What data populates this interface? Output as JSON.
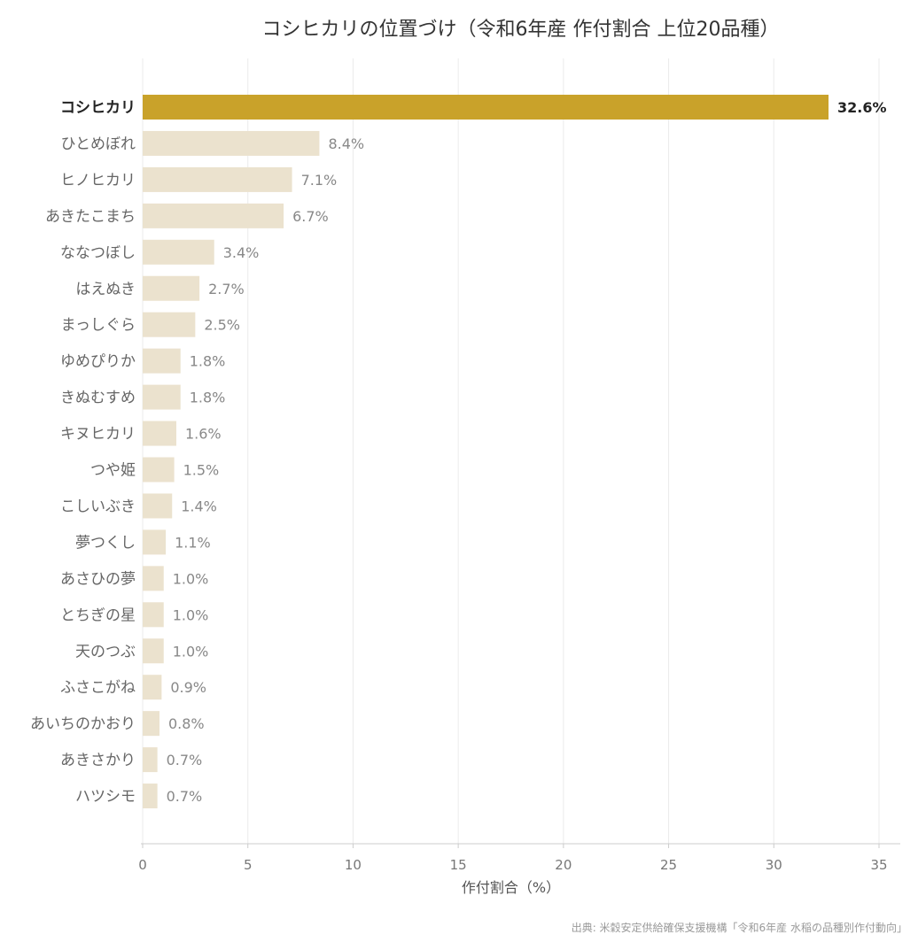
{
  "chart_data": {
    "type": "bar",
    "orientation": "horizontal",
    "title": "コシヒカリの位置づけ（令和6年産 作付割合 上位20品種）",
    "xlabel": "作付割合（%）",
    "ylabel": "",
    "xlim": [
      0,
      35
    ],
    "xticks": [
      0,
      5,
      10,
      15,
      20,
      25,
      30,
      35
    ],
    "grid": "vertical",
    "value_suffix": "%",
    "highlight": "コシヒカリ",
    "colors": {
      "highlight": "#c9a22a",
      "default": "#ebe2ce",
      "grid": "#ebebeb",
      "axis": "#cccccc"
    },
    "categories": [
      "コシヒカリ",
      "ひとめぼれ",
      "ヒノヒカリ",
      "あきたこまち",
      "ななつぼし",
      "はえぬき",
      "まっしぐら",
      "ゆめぴりか",
      "きぬむすめ",
      "キヌヒカリ",
      "つや姫",
      "こしいぶき",
      "夢つくし",
      "あさひの夢",
      "とちぎの星",
      "天のつぶ",
      "ふさこがね",
      "あいちのかおり",
      "あきさかり",
      "ハツシモ"
    ],
    "values": [
      32.6,
      8.4,
      7.1,
      6.7,
      3.4,
      2.7,
      2.5,
      1.8,
      1.8,
      1.6,
      1.5,
      1.4,
      1.1,
      1.0,
      1.0,
      1.0,
      0.9,
      0.8,
      0.7,
      0.7
    ],
    "value_labels": [
      "32.6%",
      "8.4%",
      "7.1%",
      "6.7%",
      "3.4%",
      "2.7%",
      "2.5%",
      "1.8%",
      "1.8%",
      "1.6%",
      "1.5%",
      "1.4%",
      "1.1%",
      "1.0%",
      "1.0%",
      "1.0%",
      "0.9%",
      "0.8%",
      "0.7%",
      "0.7%"
    ]
  },
  "source": "出典: 米穀安定供給確保支援機構「令和6年産 水稲の品種別作付動向」"
}
